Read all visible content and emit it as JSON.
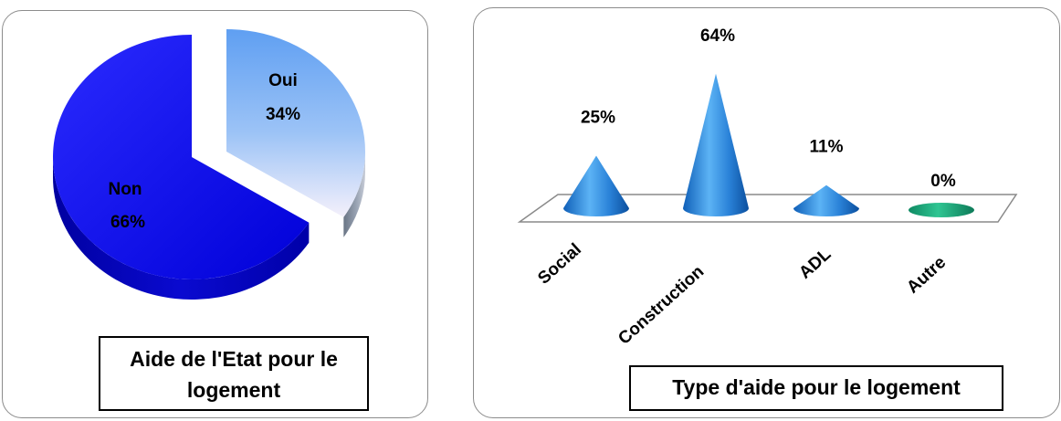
{
  "chart_data": [
    {
      "type": "pie",
      "title": "Aide de l'Etat pour le logement",
      "slices": [
        {
          "label": "Oui",
          "value": 34,
          "value_label": "34%",
          "color": "#6fa8f5"
        },
        {
          "label": "Non",
          "value": 66,
          "value_label": "66%",
          "color": "#1414e6"
        }
      ],
      "style": "3d-exploded"
    },
    {
      "type": "bar",
      "title": "Type d'aide pour le logement",
      "style": "3d-cone",
      "categories": [
        "Social",
        "Construction",
        "ADL",
        "Autre"
      ],
      "values": [
        25,
        64,
        11,
        0
      ],
      "value_labels": [
        "25%",
        "64%",
        "11%",
        "0%"
      ],
      "colors": [
        "#2a7fd4",
        "#2a7fd4",
        "#2a7fd4",
        "#1aa57a"
      ]
    }
  ]
}
